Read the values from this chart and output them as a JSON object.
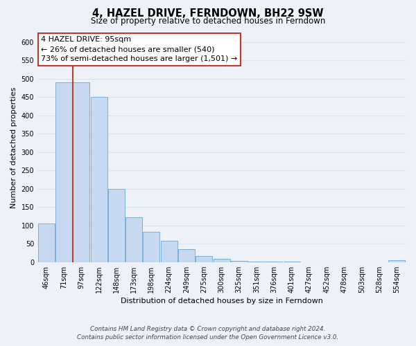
{
  "title": "4, HAZEL DRIVE, FERNDOWN, BH22 9SW",
  "subtitle": "Size of property relative to detached houses in Ferndown",
  "xlabel": "Distribution of detached houses by size in Ferndown",
  "ylabel": "Number of detached properties",
  "bin_labels": [
    "46sqm",
    "71sqm",
    "97sqm",
    "122sqm",
    "148sqm",
    "173sqm",
    "198sqm",
    "224sqm",
    "249sqm",
    "275sqm",
    "300sqm",
    "325sqm",
    "351sqm",
    "376sqm",
    "401sqm",
    "427sqm",
    "452sqm",
    "478sqm",
    "503sqm",
    "528sqm",
    "554sqm"
  ],
  "bar_heights": [
    105,
    490,
    490,
    450,
    200,
    122,
    82,
    57,
    35,
    16,
    8,
    4,
    2,
    1,
    1,
    0,
    0,
    0,
    0,
    0,
    5
  ],
  "bar_color": "#c6d9f0",
  "bar_edge_color": "#7bafd4",
  "highlight_bar_index": 2,
  "vline_color": "#c0392b",
  "annotation_title": "4 HAZEL DRIVE: 95sqm",
  "annotation_line1": "← 26% of detached houses are smaller (540)",
  "annotation_line2": "73% of semi-detached houses are larger (1,501) →",
  "annotation_box_color": "#ffffff",
  "annotation_box_edge_color": "#c0392b",
  "ylim": [
    0,
    625
  ],
  "yticks": [
    0,
    50,
    100,
    150,
    200,
    250,
    300,
    350,
    400,
    450,
    500,
    550,
    600
  ],
  "footnote1": "Contains HM Land Registry data © Crown copyright and database right 2024.",
  "footnote2": "Contains public sector information licensed under the Open Government Licence v3.0.",
  "grid_color": "#d8e4f0",
  "background_color": "#eef2f8"
}
